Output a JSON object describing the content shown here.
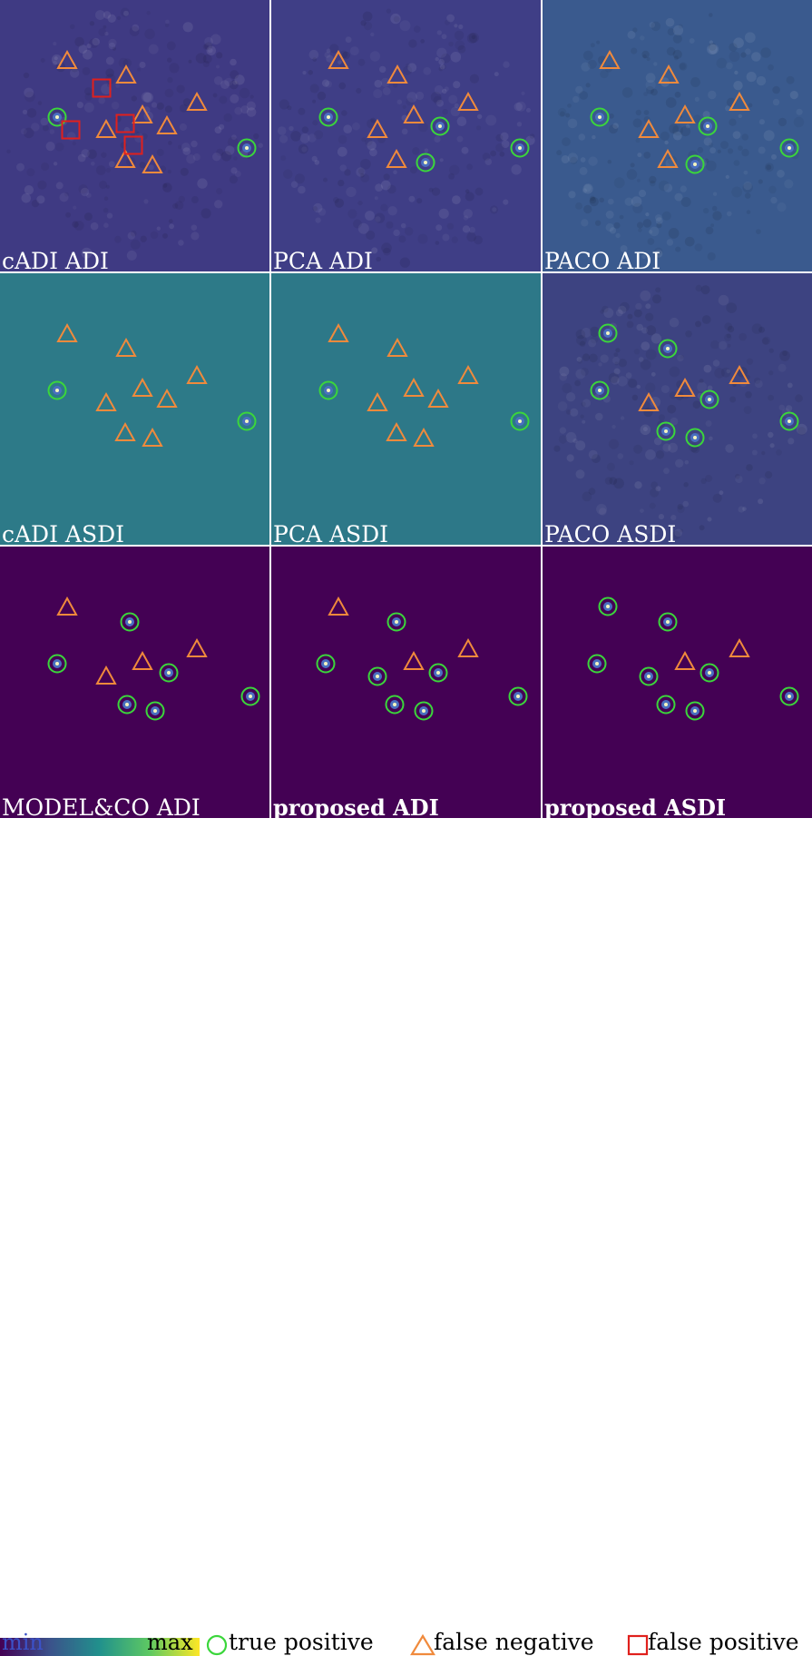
{
  "panels": [
    {
      "label": "cADI ADI",
      "bold": false,
      "bg": "#3f3a83",
      "noise": true,
      "circles": [
        [
          63,
          129
        ],
        [
          272,
          163
        ]
      ],
      "triangles": [
        [
          74,
          67
        ],
        [
          139,
          83
        ],
        [
          217,
          113
        ],
        [
          157,
          127
        ],
        [
          184,
          139
        ],
        [
          117,
          143
        ],
        [
          138,
          176
        ],
        [
          168,
          182
        ]
      ],
      "squares": [
        [
          112,
          97
        ],
        [
          78,
          143
        ],
        [
          138,
          136
        ],
        [
          147,
          160
        ]
      ]
    },
    {
      "label": "PCA ADI",
      "bold": false,
      "bg": "#3f3e86",
      "noise": true,
      "circles": [
        [
          63,
          129
        ],
        [
          186,
          139
        ],
        [
          170,
          179
        ],
        [
          274,
          163
        ]
      ],
      "triangles": [
        [
          74,
          67
        ],
        [
          139,
          83
        ],
        [
          217,
          113
        ],
        [
          157,
          127
        ],
        [
          117,
          143
        ],
        [
          138,
          176
        ]
      ],
      "squares": []
    },
    {
      "label": "PACO ADI",
      "bold": false,
      "bg": "#3a5a8e",
      "noise": true,
      "circles": [
        [
          63,
          129
        ],
        [
          182,
          139
        ],
        [
          168,
          181
        ],
        [
          272,
          163
        ]
      ],
      "triangles": [
        [
          74,
          67
        ],
        [
          139,
          83
        ],
        [
          217,
          113
        ],
        [
          157,
          127
        ],
        [
          117,
          143
        ],
        [
          138,
          176
        ]
      ],
      "squares": []
    },
    {
      "label": "cADI ASDI",
      "bold": false,
      "bg": "#2d7a88",
      "noise": false,
      "circles": [
        [
          63,
          129
        ],
        [
          272,
          163
        ]
      ],
      "triangles": [
        [
          74,
          67
        ],
        [
          139,
          83
        ],
        [
          217,
          113
        ],
        [
          157,
          127
        ],
        [
          184,
          139
        ],
        [
          117,
          143
        ],
        [
          138,
          176
        ],
        [
          168,
          182
        ]
      ],
      "squares": []
    },
    {
      "label": "PCA ASDI",
      "bold": false,
      "bg": "#2d7888",
      "noise": false,
      "circles": [
        [
          63,
          129
        ],
        [
          274,
          163
        ]
      ],
      "triangles": [
        [
          74,
          67
        ],
        [
          139,
          83
        ],
        [
          217,
          113
        ],
        [
          157,
          127
        ],
        [
          184,
          139
        ],
        [
          117,
          143
        ],
        [
          138,
          176
        ],
        [
          168,
          182
        ]
      ],
      "squares": []
    },
    {
      "label": "PACO ASDI",
      "bold": false,
      "bg": "#3d4381",
      "noise": true,
      "circles": [
        [
          72,
          66
        ],
        [
          138,
          83
        ],
        [
          63,
          129
        ],
        [
          184,
          139
        ],
        [
          136,
          174
        ],
        [
          168,
          181
        ],
        [
          272,
          163
        ]
      ],
      "triangles": [
        [
          217,
          113
        ],
        [
          157,
          127
        ],
        [
          117,
          143
        ]
      ],
      "squares": []
    },
    {
      "label": "MODEL&CO ADI",
      "bold": false,
      "bg": "#440154",
      "noise": false,
      "circles": [
        [
          143,
          83
        ],
        [
          63,
          129
        ],
        [
          186,
          139
        ],
        [
          140,
          174
        ],
        [
          171,
          181
        ],
        [
          276,
          165
        ]
      ],
      "triangles": [
        [
          74,
          67
        ],
        [
          217,
          113
        ],
        [
          157,
          127
        ],
        [
          117,
          143
        ]
      ],
      "squares": []
    },
    {
      "label": "proposed ADI",
      "bold": true,
      "bg": "#440154",
      "noise": false,
      "circles": [
        [
          138,
          83
        ],
        [
          60,
          129
        ],
        [
          117,
          143
        ],
        [
          184,
          139
        ],
        [
          136,
          174
        ],
        [
          168,
          181
        ],
        [
          272,
          165
        ]
      ],
      "triangles": [
        [
          74,
          67
        ],
        [
          217,
          113
        ],
        [
          157,
          127
        ]
      ],
      "squares": []
    },
    {
      "label": "proposed ASDI",
      "bold": true,
      "bg": "#440154",
      "noise": false,
      "circles": [
        [
          72,
          66
        ],
        [
          138,
          83
        ],
        [
          60,
          129
        ],
        [
          117,
          143
        ],
        [
          184,
          139
        ],
        [
          136,
          174
        ],
        [
          168,
          181
        ],
        [
          272,
          165
        ]
      ],
      "triangles": [
        [
          217,
          113
        ],
        [
          157,
          127
        ]
      ],
      "squares": []
    }
  ],
  "legend": {
    "min": "min",
    "max": "max",
    "true_positive": "true positive",
    "false_negative": "false negative",
    "false_positive": "false positive"
  },
  "colors": {
    "circle": "#3bd63b",
    "triangle": "#f08a3c",
    "square": "#e0201c",
    "min_text": "#3b52c8",
    "max_text": "#000000"
  }
}
